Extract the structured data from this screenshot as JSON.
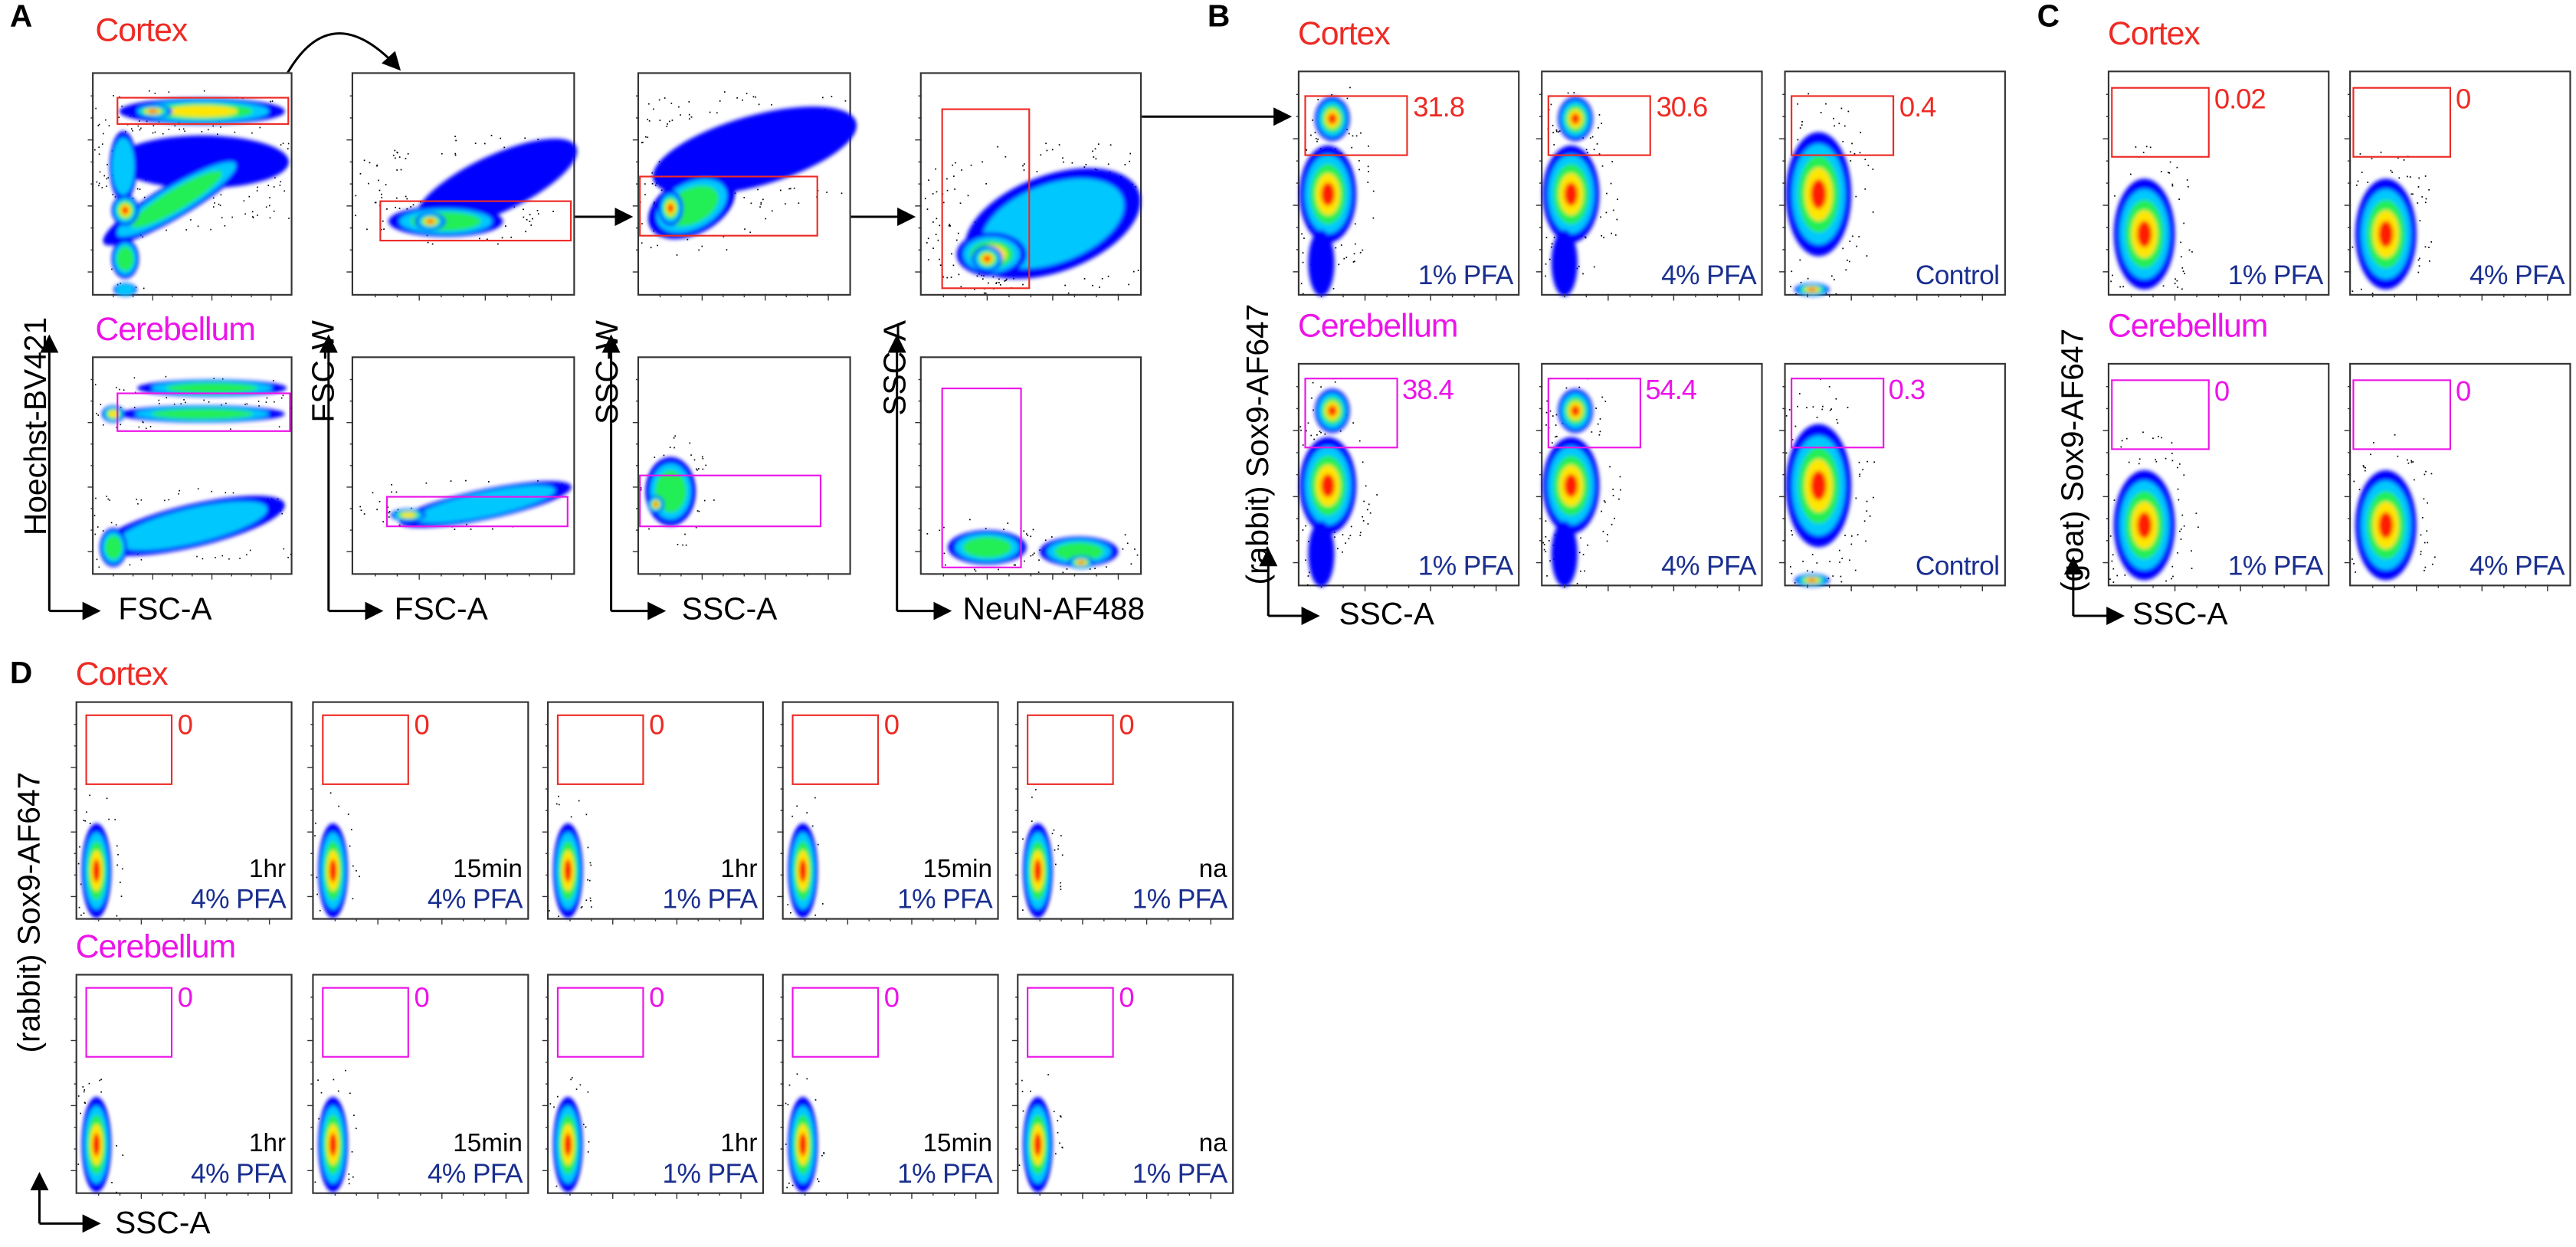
{
  "colors": {
    "cortex": "#ee2a24",
    "cerebellum": "#ec14e8",
    "condition": "#1a2f8f",
    "density_scale": [
      "#0000ff",
      "#00c8ff",
      "#22ee55",
      "#ffe600",
      "#ff1a00"
    ]
  },
  "gating": {
    "panel": "A",
    "regions": [
      "Cortex",
      "Cerebellum"
    ],
    "plots": [
      {
        "ylabel": "Hoechst-BV421",
        "xlabel": "FSC-A"
      },
      {
        "ylabel": "FSC-W",
        "xlabel": "FSC-A"
      },
      {
        "ylabel": "SSC-W",
        "xlabel": "SSC-A"
      },
      {
        "ylabel": "SSC-A",
        "xlabel": "NeuN-AF488"
      }
    ]
  },
  "chart_data": [
    {
      "panel": "B",
      "type": "scatter",
      "title": "",
      "xlabel": "SSC-A",
      "ylabel": "(rabbit) Sox9-AF647",
      "rows": [
        {
          "region": "Cortex",
          "plots": [
            {
              "gate_percent": "31.8",
              "condition": "1% PFA"
            },
            {
              "gate_percent": "30.6",
              "condition": "4% PFA"
            },
            {
              "gate_percent": "0.4",
              "condition": "Control"
            }
          ]
        },
        {
          "region": "Cerebellum",
          "plots": [
            {
              "gate_percent": "38.4",
              "condition": "1% PFA"
            },
            {
              "gate_percent": "54.4",
              "condition": "4% PFA"
            },
            {
              "gate_percent": "0.3",
              "condition": "Control"
            }
          ]
        }
      ]
    },
    {
      "panel": "C",
      "type": "scatter",
      "title": "",
      "xlabel": "SSC-A",
      "ylabel": "(goat) Sox9-AF647",
      "rows": [
        {
          "region": "Cortex",
          "plots": [
            {
              "gate_percent": "0.02",
              "condition": "1% PFA"
            },
            {
              "gate_percent": "0",
              "condition": "4% PFA"
            }
          ]
        },
        {
          "region": "Cerebellum",
          "plots": [
            {
              "gate_percent": "0",
              "condition": "1% PFA"
            },
            {
              "gate_percent": "0",
              "condition": "4% PFA"
            }
          ]
        }
      ]
    },
    {
      "panel": "D",
      "type": "scatter",
      "title": "",
      "xlabel": "SSC-A",
      "ylabel": "(rabbit) Sox9-AF647",
      "rows": [
        {
          "region": "Cortex",
          "plots": [
            {
              "gate_percent": "0",
              "time": "1hr",
              "condition": "4% PFA"
            },
            {
              "gate_percent": "0",
              "time": "15min",
              "condition": "4% PFA"
            },
            {
              "gate_percent": "0",
              "time": "1hr",
              "condition": "1% PFA"
            },
            {
              "gate_percent": "0",
              "time": "15min",
              "condition": "1% PFA"
            },
            {
              "gate_percent": "0",
              "time": "na",
              "condition": "1% PFA"
            }
          ]
        },
        {
          "region": "Cerebellum",
          "plots": [
            {
              "gate_percent": "0",
              "time": "1hr",
              "condition": "4% PFA"
            },
            {
              "gate_percent": "0",
              "time": "15min",
              "condition": "4% PFA"
            },
            {
              "gate_percent": "0",
              "time": "1hr",
              "condition": "1% PFA"
            },
            {
              "gate_percent": "0",
              "time": "15min",
              "condition": "1% PFA"
            },
            {
              "gate_percent": "0",
              "time": "na",
              "condition": "1% PFA"
            }
          ]
        }
      ]
    }
  ]
}
